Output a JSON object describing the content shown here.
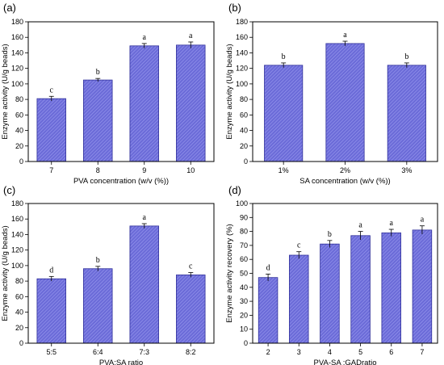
{
  "figure": {
    "background": "#ffffff"
  },
  "style": {
    "bar_fill": "#6b6bd8",
    "bar_stroke": "#2f2f9a",
    "hatch": "#9c9cf0",
    "axis": "#000000"
  },
  "chart_data": [
    {
      "panel": "(a)",
      "type": "bar",
      "xlabel": "PVA concentration (w/v (%))",
      "ylabel": "Enzyme activity (U/g beads)",
      "categories": [
        "7",
        "8",
        "9",
        "10"
      ],
      "values": [
        81,
        105,
        149,
        150
      ],
      "errors": [
        3,
        2,
        3,
        4
      ],
      "sig_labels": [
        "c",
        "b",
        "a",
        "a"
      ],
      "ylim": [
        0,
        180
      ],
      "yticks": [
        0,
        20,
        40,
        60,
        80,
        100,
        120,
        140,
        160,
        180
      ]
    },
    {
      "panel": "(b)",
      "type": "bar",
      "xlabel": "SA concentration (w/v (%))",
      "ylabel": "Enzyme activity (U/g beads)",
      "categories": [
        "1%",
        "2%",
        "3%"
      ],
      "values": [
        124,
        152,
        124
      ],
      "errors": [
        3,
        3,
        3
      ],
      "sig_labels": [
        "b",
        "a",
        "b"
      ],
      "ylim": [
        0,
        180
      ],
      "yticks": [
        0,
        20,
        40,
        60,
        80,
        100,
        120,
        140,
        160,
        180
      ]
    },
    {
      "panel": "(c)",
      "type": "bar",
      "xlabel": "PVA:SA ratio",
      "ylabel": "Enzyme activity (U/g beads)",
      "categories": [
        "5:5",
        "6:4",
        "7:3",
        "8:2"
      ],
      "values": [
        83,
        96,
        151,
        88
      ],
      "errors": [
        3,
        3,
        3,
        3
      ],
      "sig_labels": [
        "d",
        "b",
        "a",
        "c"
      ],
      "ylim": [
        0,
        180
      ],
      "yticks": [
        0,
        20,
        40,
        60,
        80,
        100,
        120,
        140,
        160,
        180
      ]
    },
    {
      "panel": "(d)",
      "type": "bar",
      "xlabel": "PVA-SA :GADratio",
      "ylabel": "Enzyme activity recovery (%)",
      "categories": [
        "2",
        "3",
        "4",
        "5",
        "6",
        "7"
      ],
      "values": [
        47,
        63,
        71,
        77,
        79,
        81
      ],
      "errors": [
        2.5,
        2.5,
        2.5,
        3,
        2.5,
        3
      ],
      "sig_labels": [
        "d",
        "c",
        "b",
        "a",
        "a",
        "a"
      ],
      "ylim": [
        0,
        100
      ],
      "yticks": [
        0,
        10,
        20,
        30,
        40,
        50,
        60,
        70,
        80,
        90,
        100
      ]
    }
  ]
}
